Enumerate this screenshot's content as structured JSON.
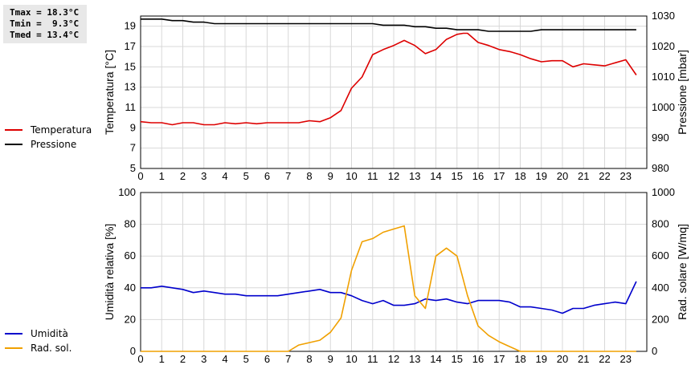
{
  "stats": {
    "tmax": "Tmax = 18.3°C",
    "tmin": "Tmin =  9.3°C",
    "tmed": "Tmed = 13.4°C"
  },
  "colors": {
    "temperatura": "#dd0000",
    "pressione": "#000000",
    "umidita": "#0000cc",
    "radiazione": "#f0a000",
    "grid": "#d8d8d8"
  },
  "chart_data": [
    {
      "type": "line",
      "xlim": [
        0,
        24
      ],
      "xticks": [
        "0",
        "1",
        "2",
        "3",
        "4",
        "5",
        "6",
        "7",
        "8",
        "9",
        "10",
        "11",
        "12",
        "13",
        "14",
        "15",
        "16",
        "17",
        "18",
        "19",
        "20",
        "21",
        "22",
        "23"
      ],
      "ylabel": "Temperatura [°C]",
      "ylim": [
        5,
        20
      ],
      "yticks": [
        "5",
        "7",
        "9",
        "11",
        "13",
        "15",
        "17",
        "19"
      ],
      "y2label": "Pressione [mbar]",
      "y2lim": [
        980,
        1030
      ],
      "y2ticks": [
        "980",
        "990",
        "1000",
        "1010",
        "1020",
        "1030"
      ],
      "grid": true,
      "legend_position": "left",
      "series": [
        {
          "name": "Temperatura",
          "axis": "left",
          "x": [
            0,
            0.5,
            1,
            1.5,
            2,
            2.5,
            3,
            3.5,
            4,
            4.5,
            5,
            5.5,
            6,
            6.5,
            7,
            7.5,
            8,
            8.5,
            9,
            9.5,
            10,
            10.5,
            11,
            11.5,
            12,
            12.5,
            13,
            13.5,
            14,
            14.5,
            15,
            15.3,
            15.5,
            16,
            16.5,
            17,
            17.5,
            18,
            18.5,
            19,
            19.5,
            20,
            20.5,
            21,
            21.5,
            22,
            22.5,
            23,
            23.5
          ],
          "y": [
            9.6,
            9.5,
            9.5,
            9.3,
            9.5,
            9.5,
            9.3,
            9.3,
            9.5,
            9.4,
            9.5,
            9.4,
            9.5,
            9.5,
            9.5,
            9.5,
            9.7,
            9.6,
            10.0,
            10.7,
            12.9,
            14.0,
            16.2,
            16.7,
            17.1,
            17.6,
            17.1,
            16.3,
            16.7,
            17.7,
            18.2,
            18.3,
            18.3,
            17.4,
            17.1,
            16.7,
            16.5,
            16.2,
            15.8,
            15.5,
            15.6,
            15.6,
            15.0,
            15.3,
            15.2,
            15.1,
            15.4,
            15.7,
            14.2
          ]
        },
        {
          "name": "Pressione",
          "axis": "right",
          "x": [
            0,
            1,
            1.5,
            2,
            2.5,
            3,
            3.5,
            11,
            11.5,
            12.5,
            13,
            13.5,
            14,
            14.5,
            15,
            15.5,
            16,
            16.5,
            17,
            17.5,
            18,
            18.5,
            19,
            23.5
          ],
          "y": [
            1029,
            1029,
            1028.5,
            1028.5,
            1028,
            1028,
            1027.5,
            1027.5,
            1027,
            1027,
            1026.5,
            1026.5,
            1026,
            1026,
            1025.5,
            1025.5,
            1025.5,
            1025,
            1025,
            1025,
            1025,
            1025,
            1025.5,
            1025.5
          ]
        }
      ]
    },
    {
      "type": "line",
      "xlim": [
        0,
        24
      ],
      "xticks": [
        "0",
        "1",
        "2",
        "3",
        "4",
        "5",
        "6",
        "7",
        "8",
        "9",
        "10",
        "11",
        "12",
        "13",
        "14",
        "15",
        "16",
        "17",
        "18",
        "19",
        "20",
        "21",
        "22",
        "23"
      ],
      "ylabel": "Umidità relativa [%]",
      "ylim": [
        0,
        100
      ],
      "yticks": [
        "0",
        "20",
        "40",
        "60",
        "80",
        "100"
      ],
      "y2label": "Rad. solare [W/mq]",
      "y2lim": [
        0,
        1000
      ],
      "y2ticks": [
        "0",
        "200",
        "400",
        "600",
        "800",
        "1000"
      ],
      "grid": true,
      "legend_position": "left",
      "series": [
        {
          "name": "Umidità",
          "axis": "left",
          "x": [
            0,
            0.5,
            1,
            1.5,
            2,
            2.5,
            3,
            3.5,
            4,
            4.5,
            5,
            5.5,
            6,
            6.5,
            7,
            7.5,
            8,
            8.5,
            9,
            9.5,
            10,
            10.5,
            11,
            11.5,
            12,
            12.5,
            13,
            13.5,
            14,
            14.5,
            15,
            15.5,
            16,
            16.5,
            17,
            17.5,
            18,
            18.5,
            19,
            19.5,
            20,
            20.5,
            21,
            21.5,
            22,
            22.5,
            23,
            23.5
          ],
          "y": [
            40,
            40,
            41,
            40,
            39,
            37,
            38,
            37,
            36,
            36,
            35,
            35,
            35,
            35,
            36,
            37,
            38,
            39,
            37,
            37,
            35,
            32,
            30,
            32,
            29,
            29,
            30,
            33,
            32,
            33,
            31,
            30,
            32,
            32,
            32,
            31,
            28,
            28,
            27,
            26,
            24,
            27,
            27,
            29,
            30,
            31,
            30,
            44
          ]
        },
        {
          "name": "Rad. sol.",
          "axis": "right",
          "x": [
            0,
            7,
            7.5,
            8,
            8.5,
            9,
            9.5,
            10,
            10.5,
            11,
            11.5,
            12,
            12.5,
            13,
            13.5,
            14,
            14.5,
            15,
            15.5,
            16,
            16.5,
            17,
            17.5,
            18,
            23.5
          ],
          "y": [
            0,
            0,
            40,
            55,
            70,
            120,
            210,
            510,
            690,
            710,
            750,
            770,
            790,
            350,
            270,
            600,
            650,
            600,
            350,
            160,
            100,
            60,
            30,
            0,
            0
          ]
        }
      ]
    }
  ]
}
